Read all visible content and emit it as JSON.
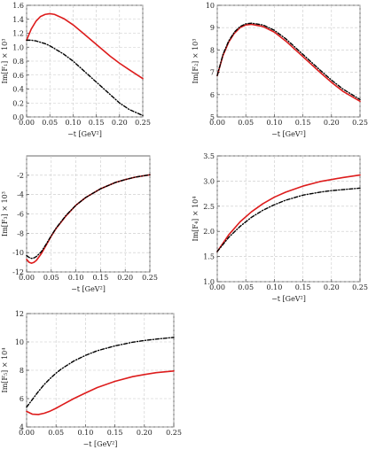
{
  "chart_data": [
    {
      "type": "line",
      "xlabel": "−t [GeV²]",
      "ylabel": "Im[F₁] × 10³",
      "xlim": [
        0,
        0.25
      ],
      "ylim": [
        0,
        1.6
      ],
      "xticks": [
        "0.00",
        "0.05",
        "0.10",
        "0.15",
        "0.20",
        "0.25"
      ],
      "yticks": [
        "0.0",
        "0.2",
        "0.4",
        "0.6",
        "0.8",
        "1.0",
        "1.2",
        "1.4",
        "1.6"
      ],
      "grid": true,
      "series": [
        {
          "style": "solid",
          "color": "#dd1c1c",
          "x": [
            0,
            0.01,
            0.02,
            0.03,
            0.04,
            0.05,
            0.06,
            0.08,
            0.1,
            0.12,
            0.15,
            0.18,
            0.2,
            0.22,
            0.25
          ],
          "y": [
            1.1,
            1.26,
            1.37,
            1.44,
            1.47,
            1.48,
            1.47,
            1.41,
            1.32,
            1.21,
            1.04,
            0.87,
            0.77,
            0.68,
            0.55
          ]
        },
        {
          "style": "dash-dot",
          "color": "#000000",
          "x": [
            0,
            0.01,
            0.02,
            0.03,
            0.04,
            0.05,
            0.06,
            0.08,
            0.1,
            0.12,
            0.15,
            0.18,
            0.2,
            0.22,
            0.25
          ],
          "y": [
            1.1,
            1.1,
            1.09,
            1.07,
            1.05,
            1.02,
            0.98,
            0.9,
            0.8,
            0.68,
            0.5,
            0.32,
            0.2,
            0.11,
            0.02
          ]
        }
      ]
    },
    {
      "type": "line",
      "xlabel": "−t [GeV²]",
      "ylabel": "Im[F₂] × 10³",
      "xlim": [
        0,
        0.25
      ],
      "ylim": [
        5,
        10
      ],
      "xticks": [
        "0.00",
        "0.05",
        "0.10",
        "0.15",
        "0.20",
        "0.25"
      ],
      "yticks": [
        "5",
        "6",
        "7",
        "8",
        "9",
        "10"
      ],
      "grid": true,
      "series": [
        {
          "style": "solid",
          "color": "#dd1c1c",
          "x": [
            0,
            0.01,
            0.02,
            0.03,
            0.04,
            0.05,
            0.06,
            0.08,
            0.1,
            0.12,
            0.15,
            0.18,
            0.2,
            0.22,
            0.25
          ],
          "y": [
            6.85,
            7.75,
            8.35,
            8.75,
            9.0,
            9.12,
            9.15,
            9.05,
            8.8,
            8.4,
            7.7,
            7.0,
            6.55,
            6.15,
            5.7
          ]
        },
        {
          "style": "dash-dot",
          "color": "#000000",
          "x": [
            0,
            0.01,
            0.02,
            0.03,
            0.04,
            0.05,
            0.06,
            0.08,
            0.1,
            0.12,
            0.15,
            0.18,
            0.2,
            0.22,
            0.25
          ],
          "y": [
            6.85,
            7.8,
            8.4,
            8.8,
            9.05,
            9.17,
            9.2,
            9.12,
            8.88,
            8.5,
            7.8,
            7.1,
            6.65,
            6.25,
            5.78
          ]
        }
      ]
    },
    {
      "type": "line",
      "xlabel": "−t [GeV²]",
      "ylabel": "Im[F₃] × 10³",
      "xlim": [
        0,
        0.25
      ],
      "ylim": [
        -12,
        0
      ],
      "xticks": [
        "0.00",
        "0.05",
        "0.10",
        "0.15",
        "0.20",
        "0.25"
      ],
      "yticks": [
        "-12",
        "-10",
        "-8",
        "-6",
        "-4",
        "-2"
      ],
      "grid": true,
      "series": [
        {
          "style": "solid",
          "color": "#dd1c1c",
          "x": [
            0,
            0.005,
            0.01,
            0.015,
            0.02,
            0.03,
            0.04,
            0.05,
            0.06,
            0.08,
            0.1,
            0.12,
            0.15,
            0.18,
            0.2,
            0.22,
            0.25
          ],
          "y": [
            -10.7,
            -11.0,
            -11.1,
            -11.0,
            -10.8,
            -10.1,
            -9.2,
            -8.3,
            -7.5,
            -6.2,
            -5.1,
            -4.3,
            -3.4,
            -2.75,
            -2.45,
            -2.2,
            -1.95
          ]
        },
        {
          "style": "dash-dot",
          "color": "#000000",
          "x": [
            0,
            0.005,
            0.01,
            0.015,
            0.02,
            0.03,
            0.04,
            0.05,
            0.06,
            0.08,
            0.1,
            0.12,
            0.15,
            0.18,
            0.2,
            0.22,
            0.25
          ],
          "y": [
            -10.3,
            -10.5,
            -10.6,
            -10.55,
            -10.4,
            -9.9,
            -9.1,
            -8.25,
            -7.45,
            -6.15,
            -5.1,
            -4.3,
            -3.4,
            -2.75,
            -2.45,
            -2.2,
            -1.95
          ]
        }
      ]
    },
    {
      "type": "line",
      "xlabel": "−t [GeV²]",
      "ylabel": "Im[F₄] × 10⁴",
      "xlim": [
        0,
        0.25
      ],
      "ylim": [
        1.0,
        3.5
      ],
      "xticks": [
        "0.00",
        "0.05",
        "0.10",
        "0.15",
        "0.20",
        "0.25"
      ],
      "yticks": [
        "1.0",
        "1.5",
        "2.0",
        "2.5",
        "3.0",
        "3.5"
      ],
      "grid": true,
      "series": [
        {
          "style": "solid",
          "color": "#dd1c1c",
          "x": [
            0,
            0.02,
            0.04,
            0.06,
            0.08,
            0.1,
            0.12,
            0.15,
            0.18,
            0.2,
            0.22,
            0.25
          ],
          "y": [
            1.6,
            1.93,
            2.19,
            2.39,
            2.55,
            2.68,
            2.78,
            2.9,
            2.99,
            3.03,
            3.07,
            3.12
          ]
        },
        {
          "style": "dash-dot",
          "color": "#000000",
          "x": [
            0,
            0.02,
            0.04,
            0.06,
            0.08,
            0.1,
            0.12,
            0.15,
            0.18,
            0.2,
            0.22,
            0.25
          ],
          "y": [
            1.6,
            1.88,
            2.1,
            2.28,
            2.42,
            2.53,
            2.62,
            2.72,
            2.78,
            2.81,
            2.83,
            2.86
          ]
        }
      ]
    },
    {
      "type": "line",
      "xlabel": "−t [GeV²]",
      "ylabel": "Im[F₅] × 10⁴",
      "xlim": [
        0,
        0.25
      ],
      "ylim": [
        4,
        12
      ],
      "xticks": [
        "0.00",
        "0.05",
        "0.10",
        "0.15",
        "0.20",
        "0.25"
      ],
      "yticks": [
        "4",
        "6",
        "8",
        "10",
        "12"
      ],
      "grid": true,
      "series": [
        {
          "style": "solid",
          "color": "#dd1c1c",
          "x": [
            0,
            0.01,
            0.02,
            0.03,
            0.04,
            0.05,
            0.06,
            0.08,
            0.1,
            0.12,
            0.15,
            0.18,
            0.2,
            0.22,
            0.25
          ],
          "y": [
            5.1,
            4.9,
            4.88,
            4.97,
            5.12,
            5.32,
            5.55,
            6.0,
            6.4,
            6.78,
            7.22,
            7.55,
            7.7,
            7.83,
            7.95
          ]
        },
        {
          "style": "dash-dot",
          "color": "#000000",
          "x": [
            0,
            0.01,
            0.02,
            0.03,
            0.04,
            0.05,
            0.06,
            0.08,
            0.1,
            0.12,
            0.15,
            0.18,
            0.2,
            0.22,
            0.25
          ],
          "y": [
            5.4,
            5.95,
            6.5,
            7.0,
            7.42,
            7.8,
            8.12,
            8.65,
            9.05,
            9.38,
            9.72,
            9.98,
            10.1,
            10.2,
            10.32
          ]
        }
      ]
    }
  ]
}
